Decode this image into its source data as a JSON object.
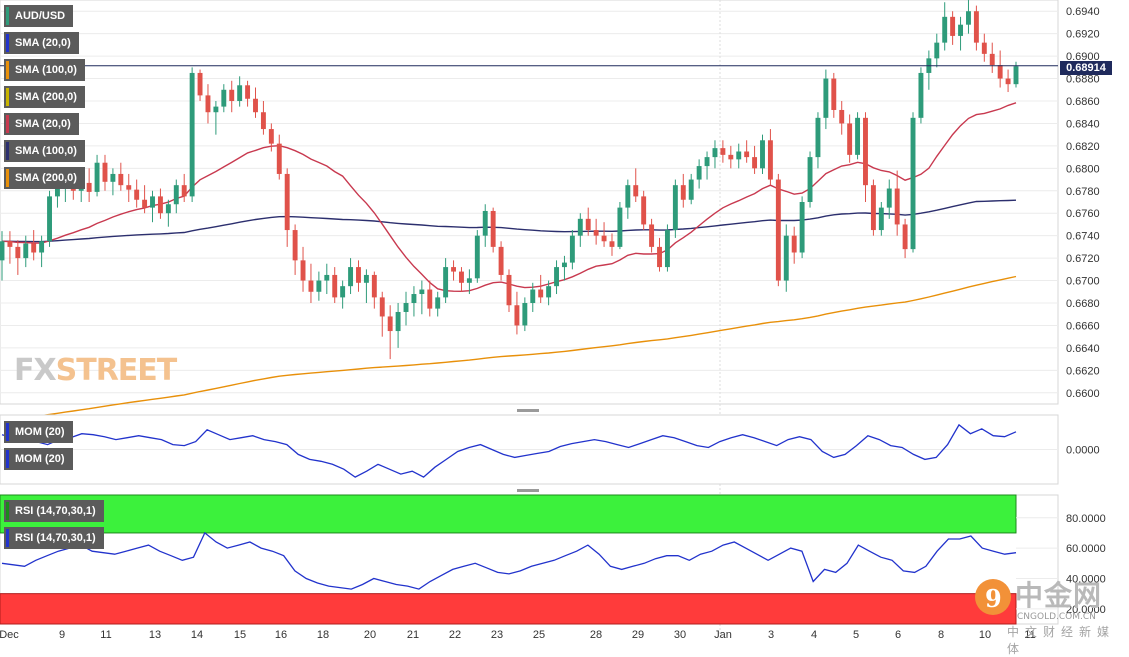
{
  "chart_data": [
    {
      "type": "candlestick",
      "symbol": "AUD/USD",
      "current_price": "0.68914",
      "ylim": [
        0.659,
        0.695
      ],
      "y_ticks": [
        "0.6940",
        "0.6920",
        "0.6900",
        "0.6880",
        "0.6860",
        "0.6840",
        "0.6820",
        "0.6800",
        "0.6780",
        "0.6760",
        "0.6740",
        "0.6720",
        "0.6700",
        "0.6680",
        "0.6660",
        "0.6640",
        "0.6620",
        "0.6600"
      ],
      "x_ticks": [
        "Dec",
        "9",
        "11",
        "13",
        "14",
        "15",
        "16",
        "18",
        "20",
        "21",
        "22",
        "23",
        "25",
        "28",
        "29",
        "30",
        "Jan",
        "3",
        "4",
        "5",
        "6",
        "8",
        "10",
        "11"
      ],
      "indicators": [
        {
          "name": "SMA (20,0)",
          "color": "#c8394f"
        },
        {
          "name": "SMA (100,0)",
          "color": "#2c2f6e"
        },
        {
          "name": "SMA (200,0)",
          "color": "#e8900a"
        }
      ],
      "legend": [
        "AUD/USD",
        "SMA (20,0)",
        "SMA (100,0)",
        "SMA (200,0)",
        "SMA (20,0)",
        "SMA (100,0)",
        "SMA (200,0)"
      ],
      "candles": [
        [
          0.6718,
          0.6744,
          0.67,
          0.6735
        ],
        [
          0.6735,
          0.6744,
          0.6715,
          0.673
        ],
        [
          0.673,
          0.6736,
          0.6705,
          0.672
        ],
        [
          0.672,
          0.674,
          0.6712,
          0.6733
        ],
        [
          0.6733,
          0.6745,
          0.6718,
          0.6725
        ],
        [
          0.6725,
          0.674,
          0.6712,
          0.6735
        ],
        [
          0.6735,
          0.678,
          0.673,
          0.6775
        ],
        [
          0.6775,
          0.679,
          0.6765,
          0.6782
        ],
        [
          0.6782,
          0.6795,
          0.677,
          0.6788
        ],
        [
          0.6788,
          0.6795,
          0.6772,
          0.678
        ],
        [
          0.678,
          0.6792,
          0.677,
          0.6787
        ],
        [
          0.6787,
          0.68,
          0.677,
          0.6779
        ],
        [
          0.6779,
          0.6812,
          0.6775,
          0.6805
        ],
        [
          0.6805,
          0.6812,
          0.678,
          0.6788
        ],
        [
          0.6788,
          0.68,
          0.6776,
          0.6795
        ],
        [
          0.6795,
          0.6805,
          0.678,
          0.6785
        ],
        [
          0.6785,
          0.6795,
          0.677,
          0.6781
        ],
        [
          0.6781,
          0.679,
          0.6765,
          0.6772
        ],
        [
          0.6772,
          0.6785,
          0.676,
          0.6765
        ],
        [
          0.6765,
          0.678,
          0.6752,
          0.6775
        ],
        [
          0.6775,
          0.6782,
          0.6755,
          0.676
        ],
        [
          0.676,
          0.6772,
          0.6748,
          0.6768
        ],
        [
          0.6768,
          0.679,
          0.676,
          0.6785
        ],
        [
          0.6785,
          0.6795,
          0.677,
          0.6775
        ],
        [
          0.6775,
          0.689,
          0.677,
          0.6885
        ],
        [
          0.6885,
          0.6888,
          0.686,
          0.6865
        ],
        [
          0.6865,
          0.6875,
          0.684,
          0.685
        ],
        [
          0.685,
          0.686,
          0.683,
          0.6855
        ],
        [
          0.6855,
          0.6875,
          0.685,
          0.687
        ],
        [
          0.687,
          0.6878,
          0.685,
          0.686
        ],
        [
          0.686,
          0.6882,
          0.6855,
          0.6874
        ],
        [
          0.6874,
          0.6878,
          0.6855,
          0.6862
        ],
        [
          0.6862,
          0.6872,
          0.6845,
          0.685
        ],
        [
          0.685,
          0.686,
          0.683,
          0.6835
        ],
        [
          0.6835,
          0.684,
          0.6815,
          0.6822
        ],
        [
          0.6822,
          0.683,
          0.679,
          0.6795
        ],
        [
          0.6795,
          0.68,
          0.673,
          0.6745
        ],
        [
          0.6745,
          0.675,
          0.6705,
          0.6718
        ],
        [
          0.6718,
          0.673,
          0.669,
          0.67
        ],
        [
          0.67,
          0.6715,
          0.668,
          0.669
        ],
        [
          0.669,
          0.6708,
          0.6682,
          0.67
        ],
        [
          0.67,
          0.6715,
          0.6688,
          0.6705
        ],
        [
          0.6705,
          0.6712,
          0.668,
          0.6685
        ],
        [
          0.6685,
          0.67,
          0.6675,
          0.6695
        ],
        [
          0.6695,
          0.672,
          0.6688,
          0.6712
        ],
        [
          0.6712,
          0.6718,
          0.669,
          0.6698
        ],
        [
          0.6698,
          0.671,
          0.668,
          0.6705
        ],
        [
          0.6705,
          0.6708,
          0.6675,
          0.6685
        ],
        [
          0.6685,
          0.669,
          0.665,
          0.6668
        ],
        [
          0.6668,
          0.6678,
          0.663,
          0.6655
        ],
        [
          0.6655,
          0.668,
          0.664,
          0.6672
        ],
        [
          0.6672,
          0.669,
          0.666,
          0.668
        ],
        [
          0.668,
          0.6695,
          0.6668,
          0.6688
        ],
        [
          0.6688,
          0.67,
          0.667,
          0.6692
        ],
        [
          0.6692,
          0.67,
          0.6668,
          0.6675
        ],
        [
          0.6675,
          0.669,
          0.6668,
          0.6685
        ],
        [
          0.6685,
          0.672,
          0.668,
          0.6712
        ],
        [
          0.6712,
          0.6718,
          0.67,
          0.6708
        ],
        [
          0.6708,
          0.6712,
          0.669,
          0.6698
        ],
        [
          0.6698,
          0.671,
          0.6688,
          0.6702
        ],
        [
          0.6702,
          0.6745,
          0.6698,
          0.674
        ],
        [
          0.674,
          0.6768,
          0.673,
          0.6762
        ],
        [
          0.6762,
          0.6765,
          0.6725,
          0.673
        ],
        [
          0.673,
          0.6735,
          0.67,
          0.6705
        ],
        [
          0.6705,
          0.671,
          0.6672,
          0.6678
        ],
        [
          0.6678,
          0.669,
          0.6652,
          0.666
        ],
        [
          0.666,
          0.6685,
          0.6655,
          0.668
        ],
        [
          0.668,
          0.6698,
          0.6672,
          0.6692
        ],
        [
          0.6692,
          0.6705,
          0.668,
          0.6685
        ],
        [
          0.6685,
          0.67,
          0.6678,
          0.6695
        ],
        [
          0.6695,
          0.6718,
          0.6688,
          0.6712
        ],
        [
          0.6712,
          0.6722,
          0.67,
          0.6716
        ],
        [
          0.6716,
          0.6745,
          0.671,
          0.674
        ],
        [
          0.674,
          0.676,
          0.673,
          0.6755
        ],
        [
          0.6755,
          0.6765,
          0.674,
          0.6745
        ],
        [
          0.6745,
          0.6755,
          0.6732,
          0.674
        ],
        [
          0.674,
          0.6752,
          0.673,
          0.6735
        ],
        [
          0.6735,
          0.6742,
          0.6722,
          0.673
        ],
        [
          0.673,
          0.677,
          0.6728,
          0.6765
        ],
        [
          0.6765,
          0.679,
          0.6755,
          0.6785
        ],
        [
          0.6785,
          0.68,
          0.677,
          0.6775
        ],
        [
          0.6775,
          0.678,
          0.6745,
          0.675
        ],
        [
          0.675,
          0.6755,
          0.6725,
          0.673
        ],
        [
          0.673,
          0.6738,
          0.6708,
          0.6712
        ],
        [
          0.6712,
          0.675,
          0.6708,
          0.6745
        ],
        [
          0.6745,
          0.679,
          0.6738,
          0.6785
        ],
        [
          0.6785,
          0.6795,
          0.6765,
          0.6772
        ],
        [
          0.6772,
          0.6795,
          0.6768,
          0.679
        ],
        [
          0.679,
          0.6808,
          0.6782,
          0.6802
        ],
        [
          0.6802,
          0.6815,
          0.679,
          0.681
        ],
        [
          0.681,
          0.6825,
          0.68,
          0.6818
        ],
        [
          0.6818,
          0.6825,
          0.6805,
          0.6812
        ],
        [
          0.6812,
          0.682,
          0.68,
          0.6808
        ],
        [
          0.6808,
          0.6822,
          0.68,
          0.6815
        ],
        [
          0.6815,
          0.6825,
          0.6805,
          0.681
        ],
        [
          0.681,
          0.682,
          0.6795,
          0.68
        ],
        [
          0.68,
          0.683,
          0.6795,
          0.6825
        ],
        [
          0.6825,
          0.6835,
          0.6785,
          0.679
        ],
        [
          0.679,
          0.6795,
          0.6695,
          0.67
        ],
        [
          0.67,
          0.675,
          0.669,
          0.674
        ],
        [
          0.674,
          0.6748,
          0.6715,
          0.6725
        ],
        [
          0.6725,
          0.6775,
          0.672,
          0.677
        ],
        [
          0.677,
          0.6815,
          0.6765,
          0.681
        ],
        [
          0.681,
          0.685,
          0.68,
          0.6845
        ],
        [
          0.6845,
          0.6888,
          0.6835,
          0.688
        ],
        [
          0.688,
          0.6885,
          0.6845,
          0.6852
        ],
        [
          0.6852,
          0.686,
          0.683,
          0.684
        ],
        [
          0.684,
          0.6848,
          0.6805,
          0.6812
        ],
        [
          0.6812,
          0.685,
          0.6808,
          0.6845
        ],
        [
          0.6845,
          0.685,
          0.677,
          0.6785
        ],
        [
          0.6785,
          0.679,
          0.674,
          0.6745
        ],
        [
          0.6745,
          0.677,
          0.674,
          0.6765
        ],
        [
          0.6765,
          0.679,
          0.6755,
          0.6782
        ],
        [
          0.6782,
          0.6798,
          0.674,
          0.675
        ],
        [
          0.675,
          0.6755,
          0.672,
          0.6728
        ],
        [
          0.6728,
          0.685,
          0.6725,
          0.6845
        ],
        [
          0.6845,
          0.689,
          0.684,
          0.6885
        ],
        [
          0.6885,
          0.6905,
          0.687,
          0.6898
        ],
        [
          0.6898,
          0.692,
          0.689,
          0.6912
        ],
        [
          0.6912,
          0.6948,
          0.6905,
          0.6935
        ],
        [
          0.6935,
          0.694,
          0.691,
          0.6918
        ],
        [
          0.6918,
          0.6935,
          0.6905,
          0.6928
        ],
        [
          0.6928,
          0.695,
          0.692,
          0.694
        ],
        [
          0.694,
          0.6945,
          0.6905,
          0.6912
        ],
        [
          0.6912,
          0.692,
          0.6895,
          0.6902
        ],
        [
          0.6902,
          0.6912,
          0.6885,
          0.6892
        ],
        [
          0.6892,
          0.6905,
          0.6872,
          0.688
        ],
        [
          0.688,
          0.6888,
          0.6868,
          0.6875
        ],
        [
          0.6875,
          0.6895,
          0.6872,
          0.6891
        ]
      ]
    },
    {
      "type": "line",
      "name": "MOM (20)",
      "legend": [
        "MOM (20)",
        "MOM (20)"
      ],
      "y_ticks": [
        "0.0000"
      ],
      "ylim": [
        -0.0035,
        0.0035
      ],
      "color": "#2233cc",
      "values": [
        0.0015,
        0.0012,
        0.001,
        0.0008,
        0.0005,
        0.001,
        0.0012,
        0.0016,
        0.0015,
        0.0013,
        0.001,
        0.0012,
        0.0014,
        0.0012,
        0.001,
        0.0005,
        0.0004,
        0.0008,
        0.002,
        0.0015,
        0.001,
        0.0012,
        0.0014,
        0.001,
        0.0008,
        0.0005,
        -0.0005,
        -0.001,
        -0.0012,
        -0.0015,
        -0.002,
        -0.0028,
        -0.0022,
        -0.0015,
        -0.002,
        -0.0025,
        -0.0022,
        -0.0028,
        -0.0018,
        -0.001,
        -0.0002,
        0.0002,
        0.0005,
        0.0,
        -0.0005,
        -0.0008,
        -0.0006,
        -0.0004,
        -0.0002,
        0.0003,
        0.0006,
        0.0008,
        0.001,
        0.0008,
        0.0005,
        0.0002,
        0.0006,
        0.001,
        0.0014,
        0.0012,
        0.0008,
        0.0004,
        0.0002,
        0.0008,
        0.0012,
        0.0015,
        0.0012,
        0.0008,
        0.0004,
        0.001,
        0.0013,
        0.001,
        -0.0002,
        -0.0008,
        -0.0005,
        0.0004,
        0.0014,
        0.001,
        0.0004,
        0.0002,
        -0.0005,
        -0.001,
        -0.0008,
        0.0005,
        0.0025,
        0.0016,
        0.0021,
        0.0014,
        0.0013,
        0.0018
      ],
      "x_ticks": [
        "Dec",
        "9",
        "11",
        "13",
        "14",
        "15",
        "16",
        "18",
        "20",
        "21",
        "22",
        "23",
        "25",
        "28",
        "29",
        "30",
        "Jan",
        "3",
        "4",
        "5",
        "6",
        "8",
        "10",
        "11"
      ]
    },
    {
      "type": "line",
      "name": "RSI (14,70,30,1)",
      "legend": [
        "RSI (14,70,30,1)",
        "RSI (14,70,30,1)"
      ],
      "y_ticks": [
        "80.0000",
        "60.0000",
        "40.0000",
        "20.0000"
      ],
      "ylim": [
        10,
        95
      ],
      "bands": {
        "overbought": 70,
        "oversold": 30
      },
      "color": "#2233cc",
      "values": [
        50,
        49,
        48,
        52,
        55,
        58,
        60,
        62,
        58,
        57,
        56,
        58,
        60,
        62,
        58,
        55,
        52,
        54,
        70,
        64,
        60,
        62,
        64,
        60,
        58,
        55,
        45,
        40,
        37,
        35,
        34,
        33,
        36,
        40,
        38,
        36,
        35,
        33,
        38,
        42,
        46,
        48,
        50,
        47,
        44,
        43,
        45,
        48,
        50,
        52,
        55,
        58,
        62,
        56,
        48,
        46,
        48,
        50,
        53,
        55,
        55,
        52,
        56,
        58,
        62,
        64,
        60,
        56,
        52,
        56,
        60,
        58,
        38,
        46,
        44,
        50,
        62,
        58,
        54,
        52,
        45,
        44,
        48,
        58,
        66,
        66,
        68,
        60,
        58,
        56,
        57
      ],
      "x_ticks": [
        "Dec",
        "9",
        "11",
        "13",
        "14",
        "15",
        "16",
        "18",
        "20",
        "21",
        "22",
        "23",
        "25",
        "28",
        "29",
        "30",
        "Jan",
        "3",
        "4",
        "5",
        "6",
        "8",
        "10",
        "11"
      ]
    }
  ],
  "watermark": {
    "fx": "FX",
    "street": "STREET"
  },
  "logo": {
    "cn": "中金网",
    "en": "CNGOLD.COM.CN",
    "sub": "中文财经新媒体",
    "mark": "9"
  }
}
